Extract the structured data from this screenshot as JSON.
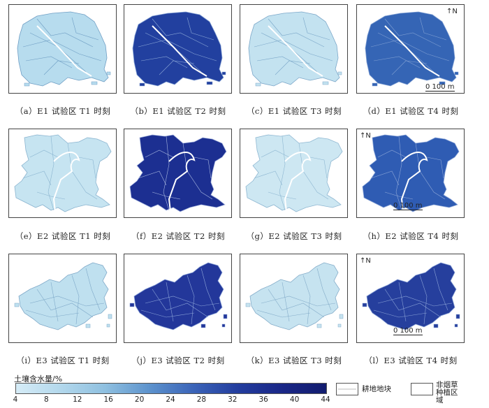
{
  "panels": [
    {
      "caption": "（a）E1 试验区 T1 时刻",
      "fill": "#b7dcee",
      "edge": "#6f9ec4",
      "shape": "e1"
    },
    {
      "caption": "（b）E1 试验区 T2 时刻",
      "fill": "#22409f",
      "edge": "#8aa6d6",
      "shape": "e1"
    },
    {
      "caption": "（c）E1 试验区 T3 时刻",
      "fill": "#c3e2f0",
      "edge": "#7aa6c8",
      "shape": "e1"
    },
    {
      "caption": "（d）E1 试验区 T4 时刻",
      "fill": "#3565b5",
      "edge": "#7e9ed2",
      "shape": "e1",
      "north": "N",
      "scale": "0  100 m"
    },
    {
      "caption": "（e）E2 试验区 T1 时刻",
      "fill": "#c6e4f1",
      "edge": "#89b3cf",
      "shape": "e2"
    },
    {
      "caption": "（f）E2 试验区 T2 时刻",
      "fill": "#1c2f91",
      "edge": "#aab9e0",
      "shape": "e2"
    },
    {
      "caption": "（g）E2 试验区 T3 时刻",
      "fill": "#cde7f2",
      "edge": "#8db6d1",
      "shape": "e2"
    },
    {
      "caption": "（h）E2 试验区 T4 时刻",
      "fill": "#2f5cb3",
      "edge": "#8fa8d8",
      "shape": "e2",
      "north": "N",
      "scale": "0    100 m"
    },
    {
      "caption": "（i）E3 试验区 T1 时刻",
      "fill": "#bfe0ef",
      "edge": "#7ea8c8",
      "shape": "e3"
    },
    {
      "caption": "（j）E3 试验区 T2 时刻",
      "fill": "#23379a",
      "edge": "#8ca4d8",
      "shape": "e3"
    },
    {
      "caption": "（k）E3 试验区 T3 时刻",
      "fill": "#c6e3f0",
      "edge": "#84acc9",
      "shape": "e3"
    },
    {
      "caption": "（l）E3 试验区 T4 时刻",
      "fill": "#263f9d",
      "edge": "#8aa2d6",
      "shape": "e3",
      "north": "N",
      "scale": "0    100 m"
    }
  ],
  "legend": {
    "title": "土壤含水量/%",
    "ticks": [
      "4",
      "8",
      "12",
      "16",
      "20",
      "24",
      "28",
      "32",
      "36",
      "40",
      "44"
    ],
    "plot_label": "耕地地块",
    "non_tobacco_label": "非烟草种植区域"
  }
}
